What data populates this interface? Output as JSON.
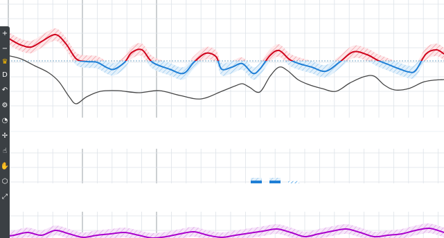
{
  "chart_data": [
    {
      "type": "line",
      "panel": "main",
      "grid": true,
      "reference_line": {
        "y": 88,
        "color": "#8fb6d0",
        "style": "dotted"
      },
      "series": [
        {
          "role": "oscillation",
          "color_above": "#d0021b",
          "color_below": "#1f7fd6",
          "band_above_color": "#f4a6ad",
          "band_below_color": "#9ecbef",
          "x": [
            0,
            15,
            30,
            45,
            60,
            80,
            95,
            110,
            125,
            140,
            155,
            165,
            180,
            190,
            205,
            220,
            245,
            265,
            280,
            297,
            312,
            320,
            335,
            350,
            365,
            375,
            390,
            403,
            418,
            432,
            450,
            470,
            490,
            510,
            530,
            545,
            560,
            575,
            590,
            600,
            615,
            630,
            641
          ],
          "y": [
            47,
            57,
            65,
            68,
            60,
            50,
            63,
            85,
            89,
            90,
            98,
            100,
            90,
            76,
            72,
            90,
            100,
            106,
            90,
            77,
            82,
            100,
            97,
            92,
            106,
            100,
            80,
            73,
            86,
            92,
            97,
            103,
            90,
            75,
            79,
            87,
            93,
            99,
            104,
            102,
            78,
            72,
            78
          ]
        },
        {
          "role": "secondary",
          "color": "#444444",
          "x": [
            10,
            30,
            50,
            70,
            85,
            100,
            110,
            125,
            145,
            170,
            200,
            230,
            260,
            290,
            320,
            340,
            350,
            360,
            375,
            390,
            403,
            415,
            430,
            445,
            465,
            485,
            505,
            525,
            540,
            555,
            570,
            590,
            610,
            625,
            641
          ],
          "y": [
            80,
            85,
            95,
            105,
            118,
            140,
            150,
            140,
            132,
            131,
            134,
            131,
            138,
            143,
            132,
            124,
            121,
            126,
            133,
            110,
            97,
            102,
            115,
            122,
            128,
            132,
            120,
            111,
            110,
            123,
            130,
            128,
            119,
            116,
            115
          ]
        }
      ]
    },
    {
      "type": "bar",
      "panel": "middle",
      "grid": true,
      "bars": [
        {
          "x": 370,
          "value": 1,
          "style": "solid",
          "color": "#1f7fd6"
        },
        {
          "x": 397,
          "value": 1,
          "style": "solid",
          "color": "#1f7fd6"
        },
        {
          "x": 424,
          "value": 0.4,
          "style": "hatched",
          "color": "#58a8e8"
        }
      ]
    },
    {
      "type": "line",
      "panel": "lower",
      "grid": true,
      "series": [
        {
          "role": "oscillation",
          "color": "#aa00cc",
          "band_color": "#e7b3ef",
          "x": [
            0,
            20,
            40,
            60,
            80,
            100,
            120,
            140,
            160,
            180,
            200,
            220,
            240,
            260,
            280,
            300,
            320,
            340,
            360,
            380,
            400,
            420,
            440,
            460,
            480,
            500,
            520,
            540,
            560,
            580,
            600,
            620,
            641
          ],
          "y": [
            343,
            340,
            336,
            340,
            333,
            338,
            343,
            340,
            338,
            336,
            340,
            344,
            342,
            338,
            335,
            340,
            343,
            340,
            337,
            334,
            331,
            336,
            342,
            338,
            334,
            331,
            336,
            342,
            340,
            338,
            333,
            330,
            336
          ]
        }
      ]
    }
  ],
  "toolbar": {
    "items": [
      {
        "name": "plus",
        "glyph": "+"
      },
      {
        "name": "minus",
        "glyph": "−"
      },
      {
        "name": "crown",
        "glyph": "♛"
      },
      {
        "name": "draw",
        "glyph": "D"
      },
      {
        "name": "arrow",
        "glyph": "↶"
      },
      {
        "name": "gear",
        "glyph": "⚙"
      },
      {
        "name": "lock",
        "glyph": "◔"
      },
      {
        "name": "cross",
        "glyph": "✢"
      },
      {
        "name": "thumb",
        "glyph": "☝"
      },
      {
        "name": "hand",
        "glyph": "✋"
      },
      {
        "name": "layers",
        "glyph": "⬡"
      },
      {
        "name": "expand",
        "glyph": "⤢"
      }
    ]
  }
}
